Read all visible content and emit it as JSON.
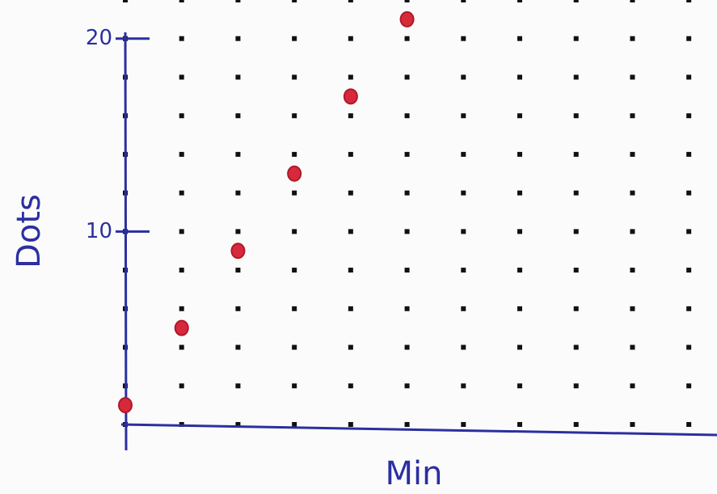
{
  "chart_data": {
    "type": "scatter",
    "x_label": "Min",
    "y_label": "Dots",
    "series": [
      {
        "name": "Dots",
        "color": "#d62a3c",
        "x": [
          0,
          1,
          2,
          3,
          4,
          5
        ],
        "values": [
          1,
          5,
          9,
          13,
          17,
          21
        ]
      }
    ],
    "xlim": [
      0,
      10.5
    ],
    "ylim": [
      0,
      22
    ],
    "yticks": [
      10,
      20
    ],
    "grid": true,
    "axis_color": "#2b2fa0",
    "grid_color": "#111111"
  }
}
